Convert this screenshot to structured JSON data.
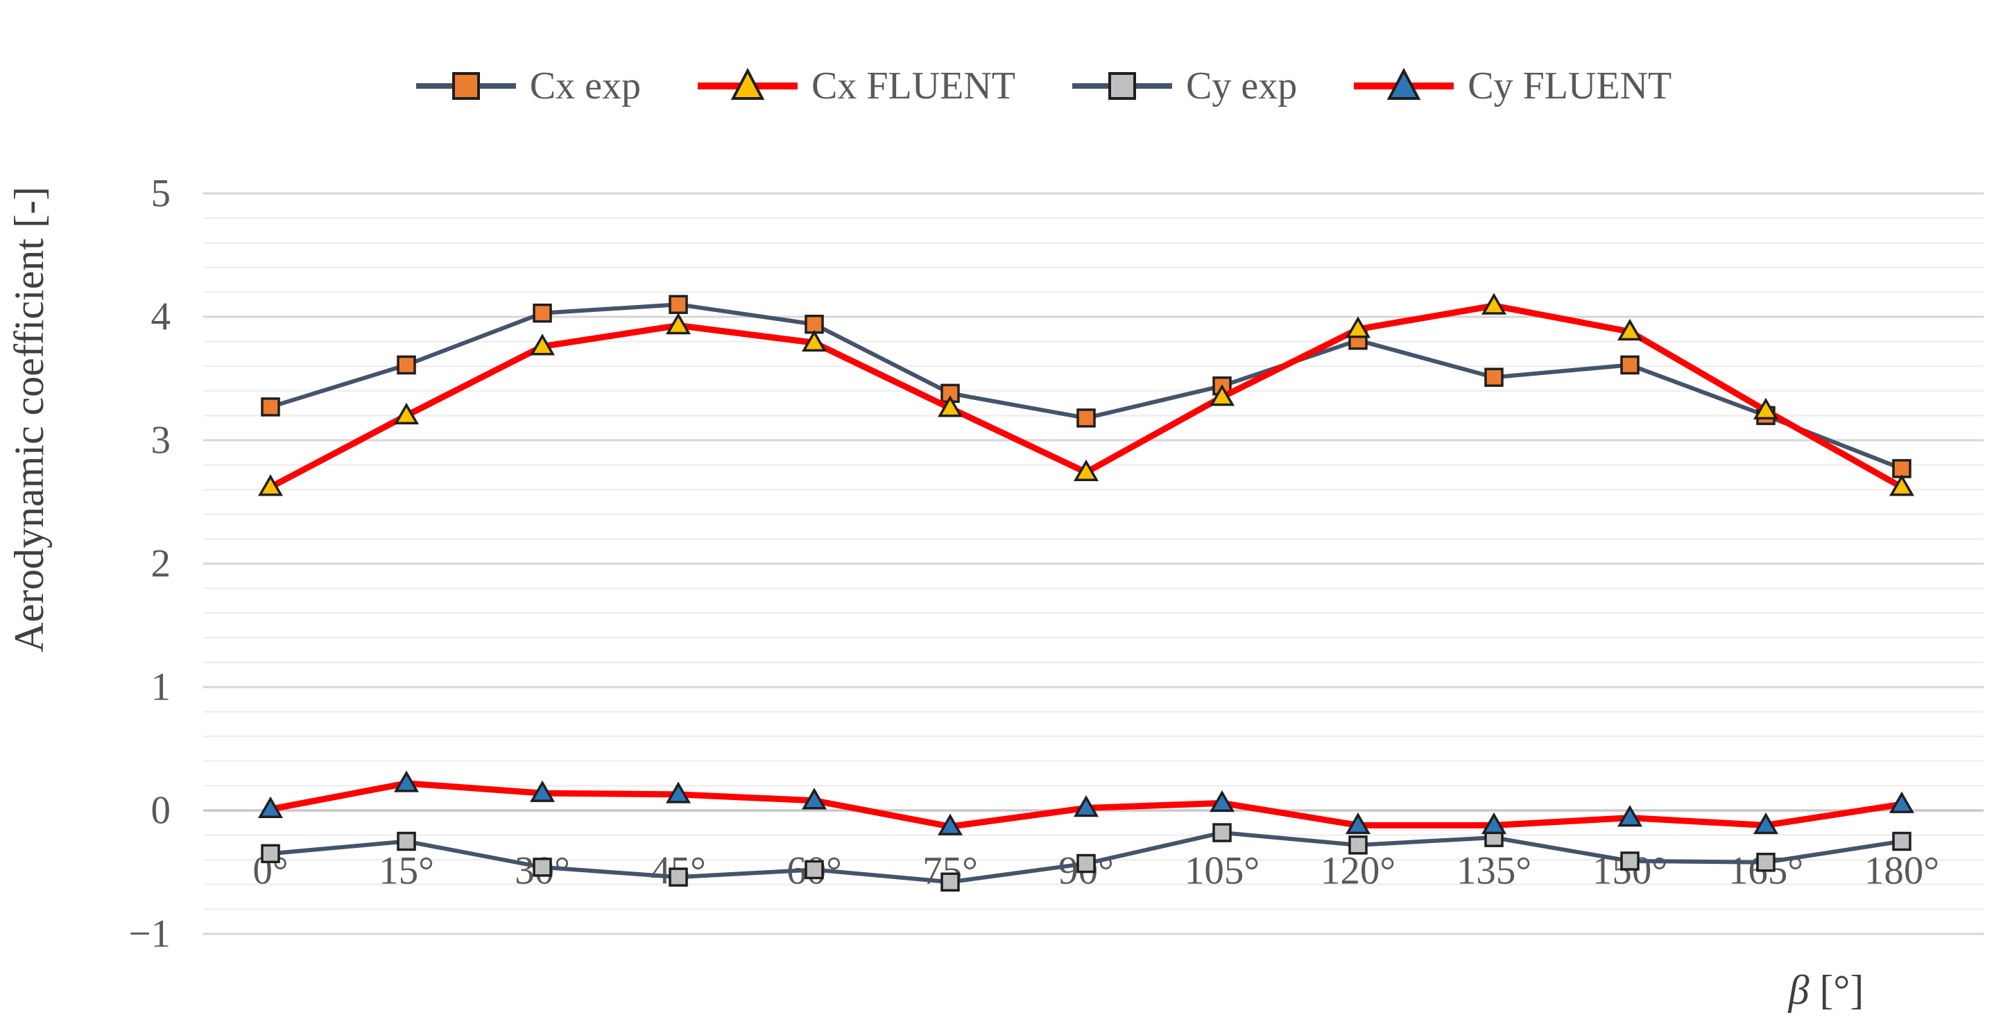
{
  "chart_data": {
    "type": "line",
    "title": "",
    "xlabel": "β [°]",
    "xlabel_symbol": "β",
    "xlabel_unit": "[°]",
    "ylabel": "Aerodynamic coefficient [-]",
    "categories": [
      "0°",
      "15°",
      "30°",
      "45°",
      "60°",
      "75°",
      "90°",
      "105°",
      "120°",
      "135°",
      "150°",
      "165°",
      "180°"
    ],
    "x_values_deg": [
      0,
      15,
      30,
      45,
      60,
      75,
      90,
      105,
      120,
      135,
      150,
      165,
      180
    ],
    "ylim": [
      -1,
      5
    ],
    "y_major_step": 1,
    "y_minor_step": 0.2,
    "y_ticks": [
      "5",
      "4",
      "3",
      "2",
      "1",
      "0",
      "−1"
    ],
    "y_tick_values": [
      5,
      4,
      3,
      2,
      1,
      0,
      -1
    ],
    "grid": "horizontal, major and minor lines, no vertical grid, no axis lines",
    "legend_position": "top",
    "series": [
      {
        "name": "Cx exp",
        "marker": "square",
        "marker_color": "#ED7D31",
        "line_color": "#44546A",
        "values": [
          3.27,
          3.61,
          4.03,
          4.1,
          3.94,
          3.38,
          3.18,
          3.44,
          3.81,
          3.51,
          3.61,
          3.2,
          2.77
        ]
      },
      {
        "name": "Cx FLUENT",
        "marker": "triangle",
        "marker_color": "#FFC000",
        "line_color": "#FF0000",
        "values": [
          2.62,
          3.2,
          3.76,
          3.93,
          3.79,
          3.26,
          2.74,
          3.35,
          3.9,
          4.09,
          3.88,
          3.24,
          2.62
        ]
      },
      {
        "name": "Cy exp",
        "marker": "square",
        "marker_color": "#BFBFBF",
        "line_color": "#44546A",
        "values": [
          -0.35,
          -0.25,
          -0.46,
          -0.54,
          -0.48,
          -0.58,
          -0.43,
          -0.18,
          -0.28,
          -0.22,
          -0.41,
          -0.42,
          -0.25
        ]
      },
      {
        "name": "Cy FLUENT",
        "marker": "triangle",
        "marker_color": "#2E75B6",
        "line_color": "#FF0000",
        "values": [
          0.01,
          0.22,
          0.14,
          0.13,
          0.08,
          -0.13,
          0.02,
          0.06,
          -0.12,
          -0.12,
          -0.06,
          -0.12,
          0.05
        ]
      }
    ],
    "colors": {
      "tick_text": "#595959",
      "axis_title_text": "#404040",
      "minor_grid": "#EFEFEF",
      "major_grid": "#D6D6D6",
      "zero_grid": "#C8C8C8",
      "marker_outline": "#1F1F1F"
    }
  }
}
